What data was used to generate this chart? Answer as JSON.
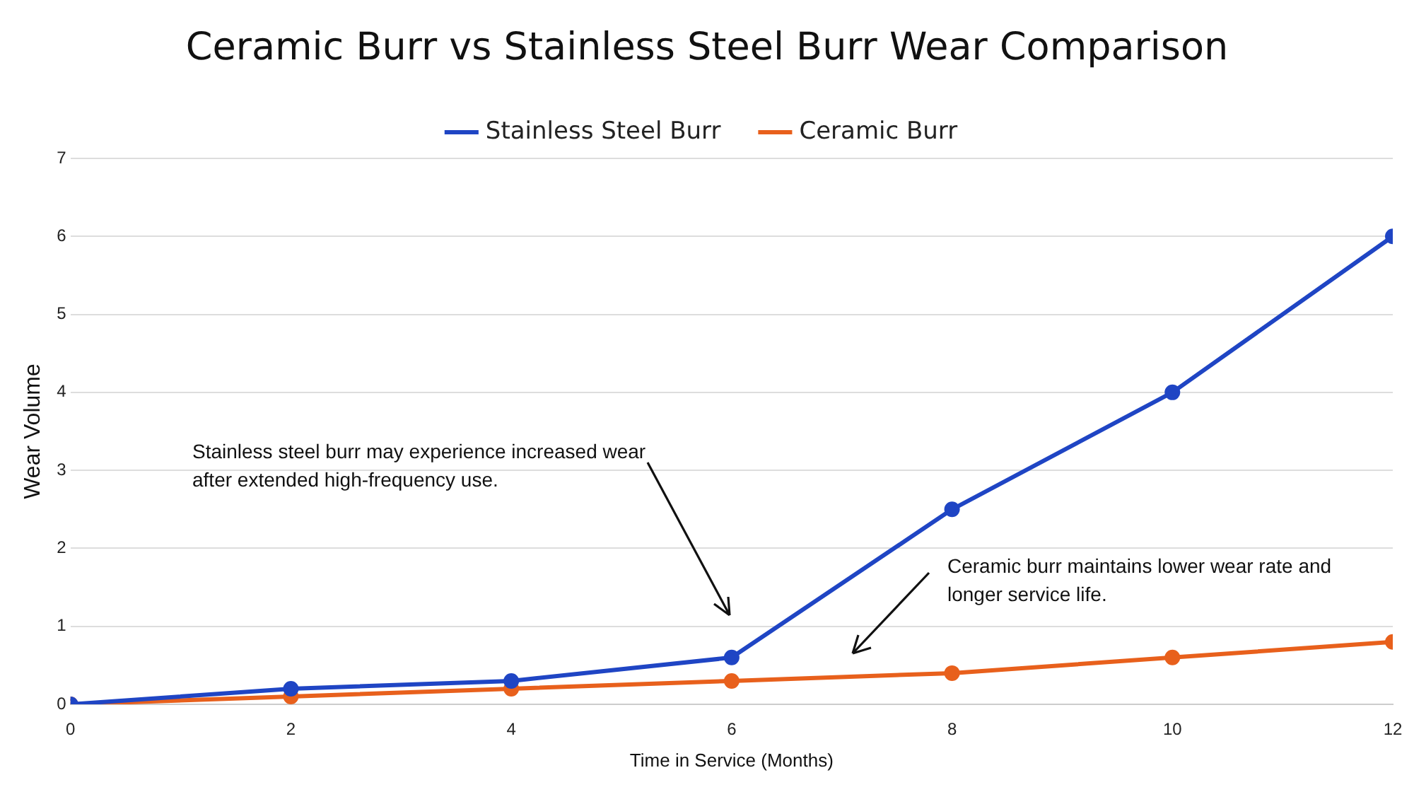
{
  "chart_data": {
    "type": "line",
    "title": "Ceramic Burr vs Stainless Steel Burr Wear Comparison",
    "xlabel": "Time in Service (Months)",
    "ylabel": "Wear Volume",
    "x": [
      0,
      2,
      4,
      6,
      8,
      10,
      12
    ],
    "series": [
      {
        "name": "Stainless Steel Burr",
        "color": "#1f45c4",
        "values": [
          0,
          0.2,
          0.3,
          0.6,
          2.5,
          4,
          6
        ]
      },
      {
        "name": "Ceramic Burr",
        "color": "#e8601c",
        "values": [
          0,
          0.1,
          0.2,
          0.3,
          0.4,
          0.6,
          0.8
        ]
      }
    ],
    "xlim": [
      0,
      12
    ],
    "xticks": [
      0,
      2,
      4,
      6,
      8,
      10,
      12
    ],
    "ylim": [
      0,
      7
    ],
    "yticks": [
      0,
      1,
      2,
      3,
      4,
      5,
      6,
      7
    ],
    "grid": "y",
    "legend": "top",
    "marker": "circle",
    "line_style": "solid",
    "annotations": [
      "Stainless steel burr may experience increased wear after extended high-frequency use.",
      "Ceramic burr maintains lower wear rate and longer service life."
    ]
  }
}
